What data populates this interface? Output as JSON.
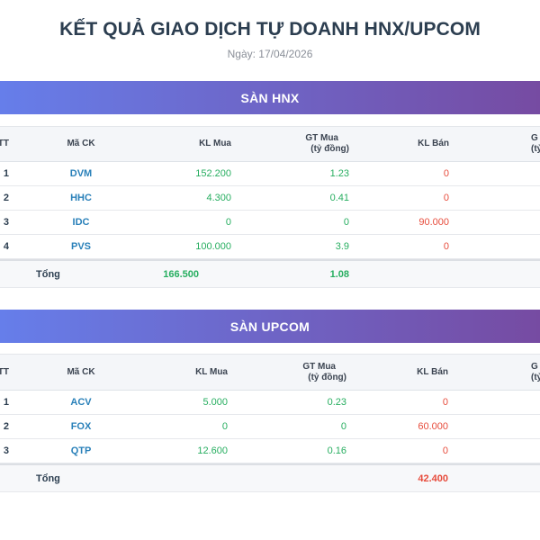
{
  "page": {
    "title": "KẾT QUẢ GIAO DỊCH TỰ DOANH HNX/UPCOM",
    "date": "Ngày: 17/04/2026"
  },
  "columns": {
    "stt": "TT",
    "ma_ck": "Mã CK",
    "kl_mua": "KL Mua",
    "gt_mua_1": "GT Mua",
    "gt_mua_2": "(tỷ đồng)",
    "kl_ban": "KL Bán",
    "gt_ban_1": "G",
    "gt_ban_2": "(tỷ"
  },
  "hnx": {
    "title": "SÀN HNX",
    "rows": [
      {
        "stt": "1",
        "ma": "DVM",
        "kl_mua": "152.200",
        "gt_mua": "1.23",
        "kl_ban": "0"
      },
      {
        "stt": "2",
        "ma": "HHC",
        "kl_mua": "4.300",
        "gt_mua": "0.41",
        "kl_ban": "0"
      },
      {
        "stt": "3",
        "ma": "IDC",
        "kl_mua": "0",
        "gt_mua": "0",
        "kl_ban": "90.000"
      },
      {
        "stt": "4",
        "ma": "PVS",
        "kl_mua": "100.000",
        "gt_mua": "3.9",
        "kl_ban": "0"
      }
    ],
    "total": {
      "label": "Tổng",
      "kl_mua": "166.500",
      "gt_mua": "1.08",
      "kl_ban": ""
    }
  },
  "upcom": {
    "title": "SÀN UPCOM",
    "rows": [
      {
        "stt": "1",
        "ma": "ACV",
        "kl_mua": "5.000",
        "gt_mua": "0.23",
        "kl_ban": "0"
      },
      {
        "stt": "2",
        "ma": "FOX",
        "kl_mua": "0",
        "gt_mua": "0",
        "kl_ban": "60.000"
      },
      {
        "stt": "3",
        "ma": "QTP",
        "kl_mua": "12.600",
        "gt_mua": "0.16",
        "kl_ban": "0"
      }
    ],
    "total": {
      "label": "Tổng",
      "kl_mua": "",
      "gt_mua": "",
      "kl_ban": "42.400"
    }
  }
}
